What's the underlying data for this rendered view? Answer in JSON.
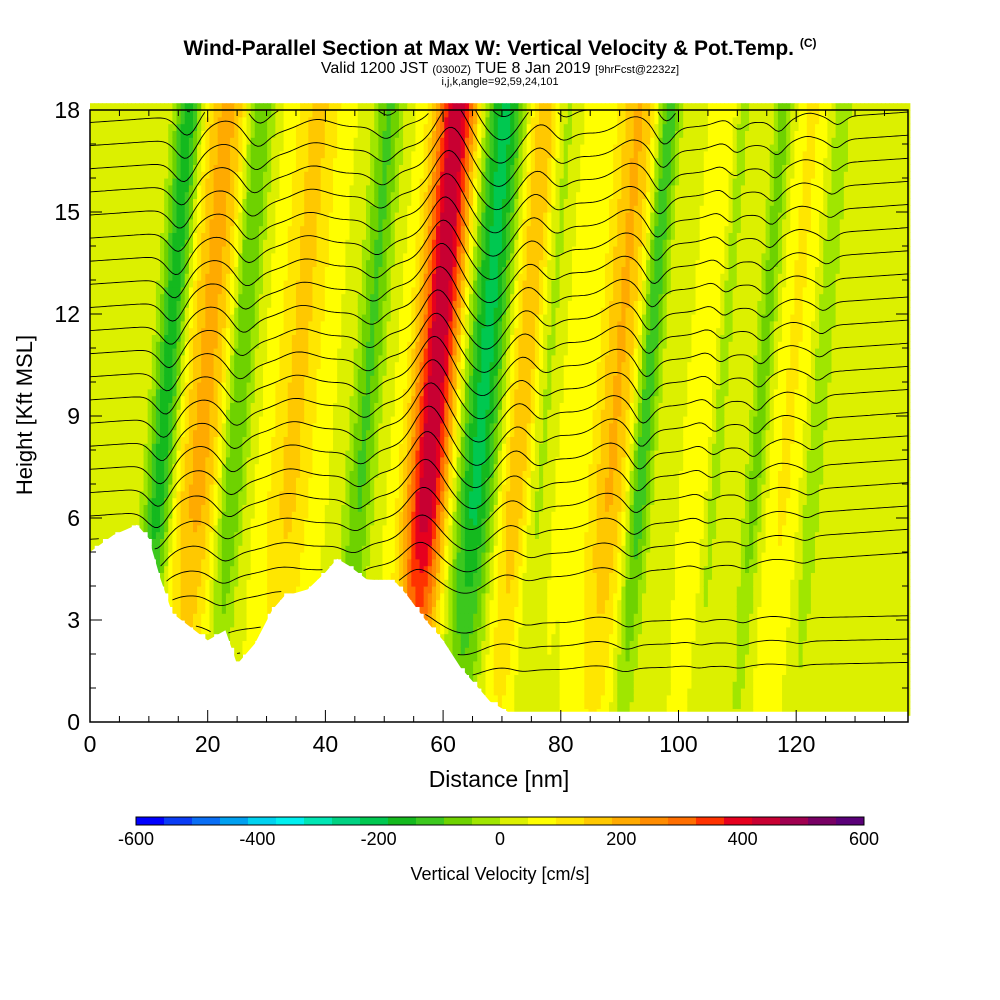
{
  "title": {
    "main": "Wind-Parallel Section at Max W: Vertical Velocity & Pot.Temp.",
    "main_suffix": "(C)",
    "valid_prefix": "Valid 1200 JST",
    "valid_utc": "(0300Z)",
    "valid_date": "TUE 8 Jan 2019",
    "forecast": "[9hrFcst@2232z]",
    "indices": "i,j,k,angle=92,59,24,101"
  },
  "chart_data": {
    "type": "heatmap",
    "xlabel": "Distance [nm]",
    "ylabel": "Height [Kft MSL]",
    "xlim": [
      0,
      139
    ],
    "ylim": [
      0,
      18
    ],
    "x_ticks": [
      0,
      20,
      40,
      60,
      80,
      100,
      120
    ],
    "y_ticks": [
      0,
      3,
      6,
      9,
      12,
      15,
      18
    ],
    "grid": false,
    "colorbar": {
      "label": "Vertical Velocity [cm/s]",
      "range": [
        -600,
        600
      ],
      "tick_labels": [
        "-600",
        "-400",
        "-200",
        "0",
        "200",
        "400",
        "600"
      ],
      "colors": [
        "#0000ff",
        "#0a3cf5",
        "#0a6ef5",
        "#00a0f0",
        "#00d2f0",
        "#00f0f0",
        "#00e6b4",
        "#00d282",
        "#00c850",
        "#14b91e",
        "#3cc81e",
        "#6ed200",
        "#a0e600",
        "#dcf000",
        "#ffff00",
        "#ffe600",
        "#ffc800",
        "#ffaa00",
        "#ff8c00",
        "#ff6e00",
        "#ff3200",
        "#e6001e",
        "#c80032",
        "#a00050",
        "#780064",
        "#5a0078"
      ]
    },
    "updrafts": [
      {
        "x0": 13,
        "x1": 23,
        "peak": 160
      },
      {
        "x0": 29,
        "x1": 38,
        "peak": 110
      },
      {
        "x0": 53,
        "x1": 61,
        "peak": 420
      },
      {
        "x0": 67,
        "x1": 78,
        "peak": 170
      },
      {
        "x0": 84,
        "x1": 92,
        "peak": 150
      },
      {
        "x0": 101,
        "x1": 107,
        "peak": 60
      },
      {
        "x0": 115,
        "x1": 120,
        "peak": 60
      }
    ],
    "downdrafts": [
      {
        "x0": 9,
        "x1": 14,
        "peak": -220
      },
      {
        "x0": 21,
        "x1": 26,
        "peak": -160
      },
      {
        "x0": 43,
        "x1": 48,
        "peak": -140
      },
      {
        "x0": 61,
        "x1": 70,
        "peak": -260
      },
      {
        "x0": 73,
        "x1": 78,
        "peak": -150
      },
      {
        "x0": 91,
        "x1": 95,
        "peak": -180
      },
      {
        "x0": 104,
        "x1": 107,
        "peak": -100
      },
      {
        "x0": 111,
        "x1": 114,
        "peak": -110
      },
      {
        "x0": 121,
        "x1": 124,
        "peak": -80
      }
    ],
    "terrain": [
      [
        0,
        5
      ],
      [
        4,
        5.5
      ],
      [
        8,
        5.8
      ],
      [
        10,
        5.4
      ],
      [
        12,
        4.2
      ],
      [
        14,
        3.2
      ],
      [
        17,
        2.8
      ],
      [
        20,
        2.4
      ],
      [
        23,
        2.7
      ],
      [
        25,
        1.7
      ],
      [
        28,
        2.3
      ],
      [
        31,
        3.3
      ],
      [
        33,
        3.7
      ],
      [
        37,
        3.9
      ],
      [
        40,
        4.4
      ],
      [
        42,
        4.8
      ],
      [
        44,
        4.6
      ],
      [
        47,
        4.2
      ],
      [
        52,
        4.1
      ],
      [
        54,
        3.7
      ],
      [
        57,
        3.0
      ],
      [
        60,
        2.4
      ],
      [
        63,
        1.6
      ],
      [
        66,
        1.0
      ],
      [
        68,
        0.6
      ],
      [
        71,
        0.3
      ],
      [
        139,
        0.3
      ]
    ],
    "isentropes_count": 26
  }
}
